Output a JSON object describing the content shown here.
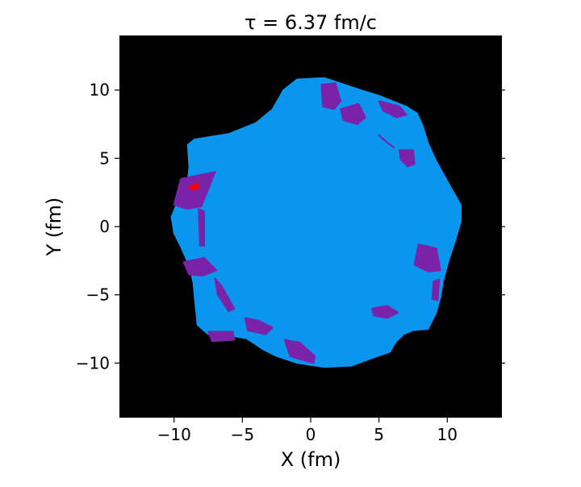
{
  "chart_data": {
    "type": "heatmap",
    "title": "τ =  6.37 fm/c",
    "xlabel": "X (fm)",
    "ylabel": "Y (fm)",
    "xlim": [
      -14,
      14
    ],
    "ylim": [
      -14,
      14
    ],
    "xticks": [
      -10,
      -5,
      0,
      5,
      10
    ],
    "yticks": [
      -10,
      -5,
      0,
      5,
      10
    ],
    "xtick_labels": [
      "−10",
      "−5",
      "0",
      "5",
      "10"
    ],
    "ytick_labels": [
      "−10",
      "−5",
      "0",
      "5",
      "10"
    ],
    "grid": false,
    "background_color": "#000000",
    "regions": [
      {
        "name": "bulk",
        "color": "#0a96ee",
        "points": [
          [
            -8.5,
            6.4
          ],
          [
            -6.0,
            6.8
          ],
          [
            -4.0,
            7.6
          ],
          [
            -2.8,
            8.6
          ],
          [
            -2.0,
            10.0
          ],
          [
            -1.0,
            10.8
          ],
          [
            1.0,
            10.9
          ],
          [
            2.5,
            10.4
          ],
          [
            4.0,
            9.9
          ],
          [
            5.0,
            9.6
          ],
          [
            6.0,
            9.2
          ],
          [
            7.0,
            8.8
          ],
          [
            7.8,
            8.3
          ],
          [
            8.2,
            7.4
          ],
          [
            8.6,
            6.1
          ],
          [
            9.2,
            4.8
          ],
          [
            10.3,
            2.8
          ],
          [
            11.0,
            1.6
          ],
          [
            11.0,
            0.4
          ],
          [
            10.6,
            -1.0
          ],
          [
            10.1,
            -2.5
          ],
          [
            9.7,
            -4.0
          ],
          [
            9.5,
            -5.2
          ],
          [
            9.2,
            -6.3
          ],
          [
            8.6,
            -7.5
          ],
          [
            7.5,
            -7.6
          ],
          [
            6.8,
            -7.9
          ],
          [
            6.2,
            -8.5
          ],
          [
            5.8,
            -9.2
          ],
          [
            4.6,
            -9.6
          ],
          [
            3.0,
            -10.2
          ],
          [
            1.0,
            -10.3
          ],
          [
            -1.0,
            -10.0
          ],
          [
            -2.5,
            -9.5
          ],
          [
            -3.5,
            -9.0
          ],
          [
            -4.7,
            -8.2
          ],
          [
            -6.0,
            -8.0
          ],
          [
            -7.5,
            -7.9
          ],
          [
            -8.3,
            -7.2
          ],
          [
            -8.5,
            -5.2
          ],
          [
            -8.6,
            -4.1
          ],
          [
            -8.8,
            -3.2
          ],
          [
            -9.1,
            -2.4
          ],
          [
            -9.5,
            -1.5
          ],
          [
            -10.0,
            -0.5
          ],
          [
            -10.2,
            0.7
          ],
          [
            -9.6,
            2.2
          ],
          [
            -9.0,
            3.4
          ],
          [
            -8.9,
            4.3
          ],
          [
            -9.0,
            6.0
          ]
        ]
      },
      {
        "name": "hotspots",
        "color": "#7a22a8",
        "blobs": [
          {
            "center": [
              1.5,
              9.7
            ],
            "points": [
              [
                0.8,
                10.4
              ],
              [
                1.8,
                10.5
              ],
              [
                2.2,
                9.2
              ],
              [
                1.7,
                8.6
              ],
              [
                0.9,
                8.8
              ]
            ]
          },
          {
            "center": [
              3.1,
              8.4
            ],
            "points": [
              [
                2.2,
                8.6
              ],
              [
                3.5,
                9.0
              ],
              [
                4.0,
                8.0
              ],
              [
                3.4,
                7.5
              ],
              [
                2.4,
                7.8
              ]
            ]
          },
          {
            "center": [
              6.1,
              8.6
            ],
            "points": [
              [
                5.0,
                9.2
              ],
              [
                6.5,
                8.8
              ],
              [
                7.0,
                8.2
              ],
              [
                6.3,
                8.0
              ],
              [
                5.3,
                8.5
              ]
            ]
          },
          {
            "center": [
              5.7,
              6.2
            ],
            "points": [
              [
                5.0,
                6.7
              ],
              [
                5.8,
                6.0
              ],
              [
                6.1,
                5.8
              ],
              [
                5.3,
                6.4
              ]
            ]
          },
          {
            "center": [
              7.1,
              5.1
            ],
            "points": [
              [
                6.5,
                5.6
              ],
              [
                7.5,
                5.6
              ],
              [
                7.6,
                4.6
              ],
              [
                7.1,
                4.4
              ],
              [
                6.6,
                4.9
              ]
            ]
          },
          {
            "center": [
              -8.2,
              2.5
            ],
            "points": [
              [
                -10.0,
                1.6
              ],
              [
                -9.5,
                3.5
              ],
              [
                -8.0,
                3.8
              ],
              [
                -7.0,
                4.0
              ],
              [
                -7.6,
                2.5
              ],
              [
                -8.0,
                1.5
              ],
              [
                -9.0,
                1.3
              ]
            ]
          },
          {
            "center": [
              -8.0,
              0.0
            ],
            "points": [
              [
                -8.2,
                1.3
              ],
              [
                -7.8,
                1.1
              ],
              [
                -7.8,
                -1.4
              ],
              [
                -8.1,
                -1.4
              ]
            ]
          },
          {
            "center": [
              -8.2,
              -2.9
            ],
            "points": [
              [
                -9.3,
                -2.6
              ],
              [
                -7.8,
                -2.3
              ],
              [
                -6.9,
                -3.2
              ],
              [
                -7.9,
                -3.6
              ],
              [
                -8.9,
                -3.5
              ]
            ]
          },
          {
            "center": [
              -6.3,
              -5.0
            ],
            "points": [
              [
                -7.0,
                -3.8
              ],
              [
                -6.5,
                -4.4
              ],
              [
                -5.6,
                -6.0
              ],
              [
                -6.0,
                -6.2
              ],
              [
                -6.8,
                -5.0
              ]
            ]
          },
          {
            "center": [
              -3.8,
              -7.2
            ],
            "points": [
              [
                -4.8,
                -6.7
              ],
              [
                -3.8,
                -6.9
              ],
              [
                -2.8,
                -7.4
              ],
              [
                -3.3,
                -7.9
              ],
              [
                -4.6,
                -7.6
              ]
            ]
          },
          {
            "center": [
              -6.5,
              -7.9
            ],
            "points": [
              [
                -7.5,
                -7.7
              ],
              [
                -5.7,
                -7.7
              ],
              [
                -5.6,
                -8.3
              ],
              [
                -7.2,
                -8.4
              ]
            ]
          },
          {
            "center": [
              -0.8,
              -9.1
            ],
            "points": [
              [
                -1.9,
                -8.3
              ],
              [
                -0.8,
                -8.5
              ],
              [
                0.3,
                -9.5
              ],
              [
                0.2,
                -10.0
              ],
              [
                -1.5,
                -9.5
              ]
            ]
          },
          {
            "center": [
              5.4,
              -6.2
            ],
            "points": [
              [
                4.5,
                -6.0
              ],
              [
                5.6,
                -5.8
              ],
              [
                6.4,
                -6.3
              ],
              [
                5.6,
                -6.7
              ],
              [
                4.6,
                -6.5
              ]
            ]
          },
          {
            "center": [
              8.5,
              -2.3
            ],
            "points": [
              [
                7.9,
                -1.3
              ],
              [
                9.2,
                -1.6
              ],
              [
                9.5,
                -3.2
              ],
              [
                8.6,
                -3.3
              ],
              [
                7.6,
                -2.8
              ]
            ]
          },
          {
            "center": [
              9.1,
              -4.7
            ],
            "points": [
              [
                9.0,
                -4.0
              ],
              [
                9.4,
                -3.9
              ],
              [
                9.3,
                -5.4
              ],
              [
                8.9,
                -5.3
              ]
            ]
          }
        ]
      },
      {
        "name": "peak",
        "color": "#ff0000",
        "points": [
          [
            -8.9,
            2.9
          ],
          [
            -8.3,
            3.2
          ],
          [
            -8.2,
            2.8
          ],
          [
            -8.7,
            2.7
          ]
        ]
      }
    ]
  }
}
